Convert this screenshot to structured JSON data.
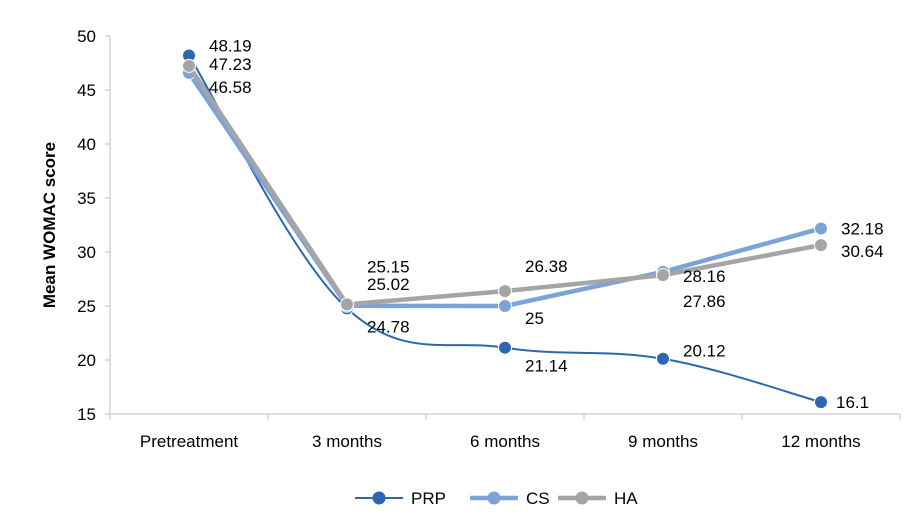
{
  "chart_data": {
    "type": "line",
    "title": "",
    "xlabel": "",
    "ylabel": "Mean WOMAC score",
    "ylim": [
      15,
      50
    ],
    "y_ticks": [
      15,
      20,
      25,
      30,
      35,
      40,
      45,
      50
    ],
    "categories": [
      "Pretreatment",
      "3 months",
      "6 months",
      "9 months",
      "12 months"
    ],
    "grid": false,
    "legend_position": "bottom",
    "series": [
      {
        "name": "PRP",
        "color": "#2E67B1",
        "values": [
          48.19,
          24.78,
          21.14,
          20.12,
          16.1
        ],
        "labels": [
          "48.19",
          "24.78",
          "21.14",
          "20.12",
          "16.1"
        ]
      },
      {
        "name": "CS",
        "color": "#7BA3D8",
        "values": [
          46.58,
          25.02,
          25,
          28.16,
          32.18
        ],
        "labels": [
          "46.58",
          "25.02",
          "25",
          "28.16",
          "32.18"
        ]
      },
      {
        "name": "HA",
        "color": "#A5A5A5",
        "values": [
          47.23,
          25.15,
          26.38,
          27.86,
          30.64
        ],
        "labels": [
          "47.23",
          "25.15",
          "26.38",
          "27.86",
          "30.64"
        ]
      }
    ]
  }
}
